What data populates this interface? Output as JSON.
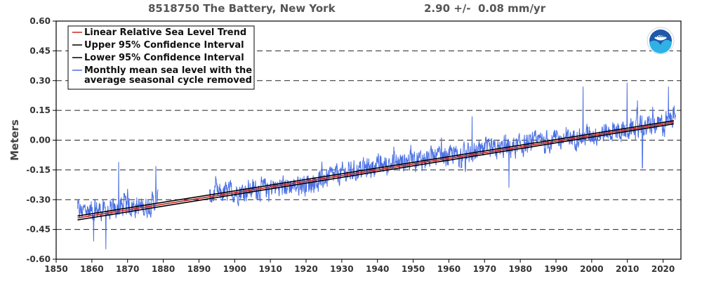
{
  "header": {
    "station": "8518750 The Battery, New York",
    "trend": "2.90 +/-  0.08 mm/yr"
  },
  "colors": {
    "trend": "#cc2222",
    "ci": "#000000",
    "monthly": "#4a6fe3",
    "grid": "#222222",
    "axis_text": "#333333"
  },
  "logo": {
    "text": "NOAA"
  },
  "chart_data": {
    "type": "line",
    "title": "8518750 The Battery, New York",
    "subtitle": "2.90 +/-  0.08 mm/yr",
    "xlabel": "",
    "ylabel": "Meters",
    "xlim": [
      1850,
      2025
    ],
    "ylim": [
      -0.6,
      0.6
    ],
    "grid": true,
    "legend_position": "top-left",
    "x_ticks": [
      1850,
      1860,
      1870,
      1880,
      1890,
      1900,
      1910,
      1920,
      1930,
      1940,
      1950,
      1960,
      1970,
      1980,
      1990,
      2000,
      2010,
      2020
    ],
    "y_ticks": [
      0.6,
      0.45,
      0.3,
      0.15,
      0.0,
      -0.15,
      -0.3,
      -0.45,
      -0.6
    ],
    "y_tick_labels": [
      "0.60",
      "0.45",
      "0.30",
      "0.15",
      "0.00",
      "-0.15",
      "-0.30",
      "-0.45",
      "-0.60"
    ],
    "legend": [
      "Linear Relative Sea Level Trend",
      "Upper 95% Confidence Interval",
      "Lower 95% Confidence Interval",
      "Monthly mean sea level with the average seasonal cycle removed"
    ],
    "series": [
      {
        "name": "Linear Relative Sea Level Trend",
        "x": [
          1856,
          2023
        ],
        "y": [
          -0.392,
          0.09
        ]
      },
      {
        "name": "Upper 95% Confidence Interval",
        "x": [
          1856,
          2023
        ],
        "y": [
          -0.382,
          0.098
        ]
      },
      {
        "name": "Lower 95% Confidence Interval",
        "x": [
          1856,
          2023
        ],
        "y": [
          -0.402,
          0.082
        ]
      },
      {
        "name": "Monthly mean sea level with the average seasonal cycle removed",
        "segments": [
          [
            1856,
            1878.5
          ],
          [
            1893,
            2023.5
          ]
        ],
        "anchor_x": [
          1856,
          1860,
          1865,
          1870,
          1875,
          1878,
          1893,
          1900,
          1910,
          1920,
          1930,
          1940,
          1950,
          1960,
          1970,
          1980,
          1990,
          2000,
          2010,
          2020,
          2023
        ],
        "anchor_y": [
          -0.36,
          -0.35,
          -0.36,
          -0.33,
          -0.34,
          -0.3,
          -0.28,
          -0.26,
          -0.24,
          -0.22,
          -0.17,
          -0.13,
          -0.1,
          -0.08,
          -0.06,
          -0.03,
          0.0,
          0.03,
          0.05,
          0.08,
          0.12
        ],
        "noise_amplitude": 0.045,
        "spikes": [
          [
            1867.5,
            -0.11
          ],
          [
            1877.9,
            -0.13
          ],
          [
            1860.5,
            -0.51
          ],
          [
            1863.9,
            -0.55
          ],
          [
            1997.6,
            0.27
          ],
          [
            2009.9,
            0.29
          ],
          [
            1966.5,
            0.12
          ],
          [
            2012.8,
            0.2
          ],
          [
            2021.5,
            0.27
          ],
          [
            2014.2,
            -0.14
          ],
          [
            1976.8,
            -0.24
          ]
        ]
      }
    ]
  }
}
